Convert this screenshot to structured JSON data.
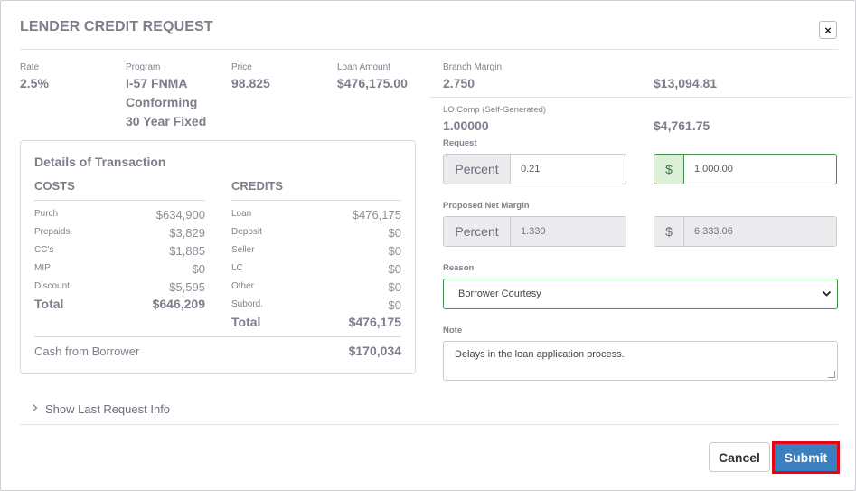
{
  "dialog": {
    "title": "LENDER CREDIT REQUEST",
    "close_icon": "×"
  },
  "loan": {
    "rate_label": "Rate",
    "rate_value": "2.5%",
    "program_label": "Program",
    "program_line1": "I-57 FNMA",
    "program_line2": "Conforming",
    "program_line3": "30 Year Fixed",
    "price_label": "Price",
    "price_value": "98.825",
    "amount_label": "Loan Amount",
    "amount_value": "$476,175.00"
  },
  "margin": {
    "branch_label": "Branch Margin",
    "branch_pct": "2.750",
    "branch_amt": "$13,094.81",
    "lo_label": "LO Comp (Self-Generated)",
    "lo_pct": "1.00000",
    "lo_amt": "$4,761.75"
  },
  "details": {
    "heading": "Details of Transaction",
    "costs_heading": "COSTS",
    "credits_heading": "CREDITS",
    "costs": [
      {
        "label": "Purch",
        "value": "$634,900"
      },
      {
        "label": "Prepaids",
        "value": "$3,829"
      },
      {
        "label": "CC's",
        "value": "$1,885"
      },
      {
        "label": "MIP",
        "value": "$0"
      },
      {
        "label": "Discount",
        "value": "$5,595"
      }
    ],
    "costs_total_label": "Total",
    "costs_total_value": "$646,209",
    "credits": [
      {
        "label": "Loan",
        "value": "$476,175"
      },
      {
        "label": "Deposit",
        "value": "$0"
      },
      {
        "label": "Seller",
        "value": "$0"
      },
      {
        "label": "LC",
        "value": "$0"
      },
      {
        "label": "Other",
        "value": "$0"
      },
      {
        "label": "Subord.",
        "value": "$0"
      }
    ],
    "credits_total_label": "Total",
    "credits_total_value": "$476,175",
    "cash_label": "Cash from Borrower",
    "cash_value": "$170,034"
  },
  "request": {
    "label": "Request",
    "percent_addon": "Percent",
    "percent_value": "0.21",
    "dollar_addon": "$",
    "dollar_value": "1,000.00"
  },
  "proposed": {
    "label": "Proposed Net Margin",
    "percent_addon": "Percent",
    "percent_value": "1.330",
    "dollar_addon": "$",
    "dollar_value": "6,333.06"
  },
  "reason": {
    "label": "Reason",
    "selected": "Borrower Courtesy"
  },
  "note": {
    "label": "Note",
    "value": "Delays in the loan application process."
  },
  "show_last": {
    "label": "Show Last Request Info"
  },
  "footer": {
    "cancel_label": "Cancel",
    "submit_label": "Submit"
  },
  "colors": {
    "submit_bg": "#3b7fbf",
    "highlight_border": "#e30613",
    "valid_green": "#3f8e4a"
  }
}
